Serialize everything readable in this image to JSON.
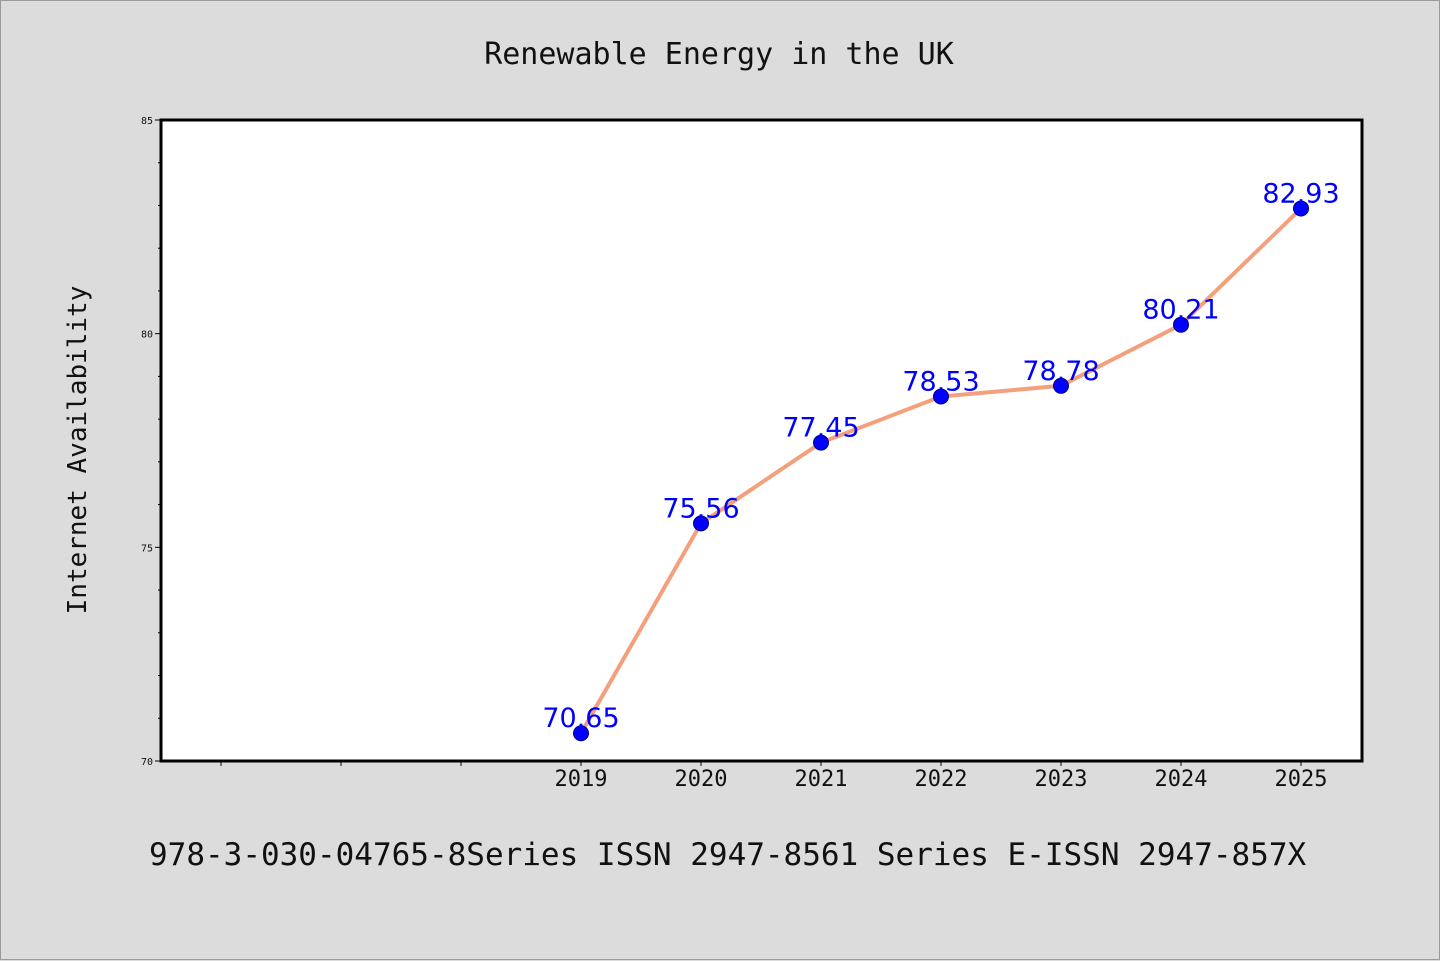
{
  "chart_data": {
    "type": "line",
    "title": "Renewable Energy in the UK",
    "xlabel": "",
    "ylabel": "Internet Availability",
    "footer": "978-3-030-04765-8Series ISSN 2947-8561 Series E-ISSN 2947-857X",
    "x": [
      "2019",
      "2020",
      "2021",
      "2022",
      "2023",
      "2024",
      "2025"
    ],
    "y": [
      70.65,
      75.56,
      77.45,
      78.53,
      78.78,
      80.21,
      82.93
    ],
    "data_labels": [
      "70.65",
      "75.56",
      "77.45",
      "78.53",
      "78.78",
      "80.21",
      "82.93"
    ],
    "ylim": [
      70,
      85
    ],
    "yticks": [
      "70",
      "75",
      "80",
      "85"
    ],
    "grid": false,
    "colors": {
      "line": "#f4a07c",
      "marker": "#0000ff",
      "label": "#0000ff",
      "background": "#dcdcdc",
      "plot_background": "#ffffff",
      "axis": "#000000"
    }
  }
}
